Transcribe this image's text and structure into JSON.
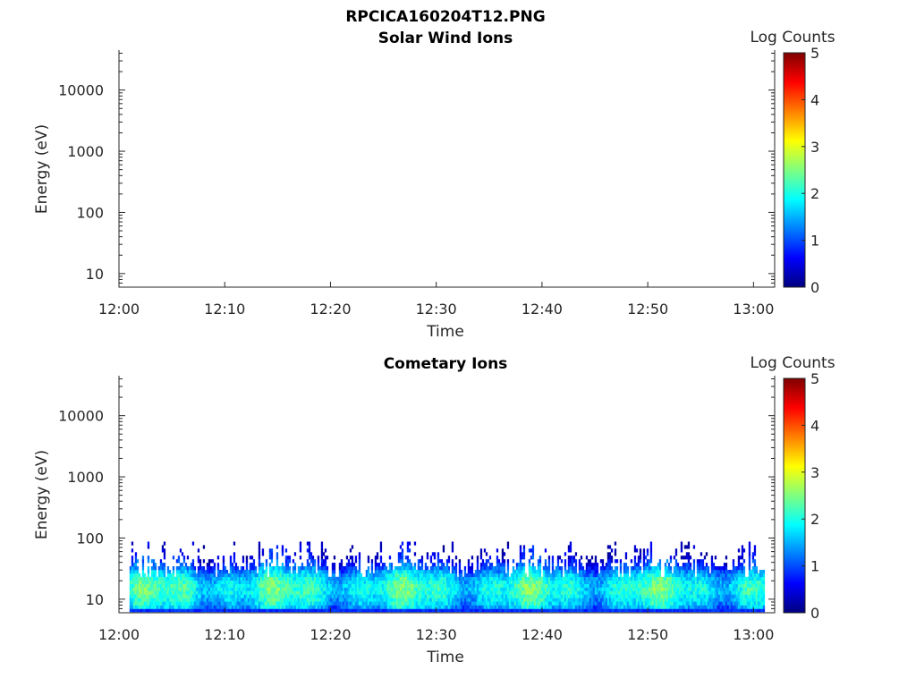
{
  "figure": {
    "title": "RPCICA160204T12.PNG"
  },
  "chart_data": [
    {
      "type": "heatmap",
      "title": "Solar Wind Ions",
      "xlabel": "Time",
      "ylabel": "Energy (eV)",
      "x_ticks": [
        "12:00",
        "12:10",
        "12:20",
        "12:30",
        "12:40",
        "12:50",
        "13:00"
      ],
      "x_range_minutes": [
        0,
        62
      ],
      "y_scale": "log",
      "y_ticks": [
        "10",
        "100",
        "1000",
        "10000"
      ],
      "y_range": [
        6,
        45000
      ],
      "colorbar": {
        "label": "Log Counts",
        "range": [
          0,
          5
        ],
        "ticks": [
          "0",
          "1",
          "2",
          "3",
          "4",
          "5"
        ],
        "colormap": "jet"
      },
      "has_data": false
    },
    {
      "type": "heatmap",
      "title": "Cometary Ions",
      "xlabel": "Time",
      "ylabel": "Energy (eV)",
      "x_ticks": [
        "12:00",
        "12:10",
        "12:20",
        "12:30",
        "12:40",
        "12:50",
        "13:00"
      ],
      "x_range_minutes": [
        0,
        62
      ],
      "y_scale": "log",
      "y_ticks": [
        "10",
        "100",
        "1000",
        "10000"
      ],
      "y_range": [
        6,
        45000
      ],
      "colorbar": {
        "label": "Log Counts",
        "range": [
          0,
          5
        ],
        "ticks": [
          "0",
          "1",
          "2",
          "3",
          "4",
          "5"
        ],
        "colormap": "jet"
      },
      "has_data": true,
      "data_time_range": [
        "12:01",
        "13:01"
      ],
      "energy_bins_eV": [
        6.2,
        7.0,
        8.0,
        9.2,
        10.5,
        12.0,
        13.7,
        15.6,
        17.8,
        20.3,
        23.2,
        26.5,
        30.2,
        34.5,
        39.4,
        45.0,
        51.4,
        58.7,
        67.0,
        76.5,
        87.3
      ],
      "band_profile_log_counts": [
        1.3,
        1.5,
        1.7,
        1.8,
        1.9,
        2.0,
        2.0,
        2.0,
        1.9,
        1.8,
        1.6,
        1.4,
        1.1,
        0.9,
        0.7,
        0.5,
        0.35,
        0.3,
        0.25,
        0.2,
        0.15
      ]
    }
  ]
}
